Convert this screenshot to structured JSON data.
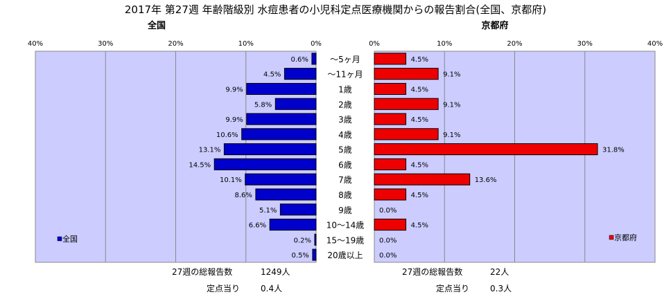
{
  "chart_data": {
    "type": "bar",
    "title": "2017年 第27週 年齢階級別 水痘患者の小児科定点医療機関からの報告割合(全国、京都府)",
    "categories": [
      "～5ヶ月",
      "～11ヶ月",
      "1歳",
      "2歳",
      "3歳",
      "4歳",
      "5歳",
      "6歳",
      "7歳",
      "8歳",
      "9歳",
      "10～14歳",
      "15～19歳",
      "20歳以上"
    ],
    "xlim": [
      0,
      40
    ],
    "ticks": [
      "40%",
      "30%",
      "20%",
      "10%",
      "0%"
    ],
    "ticks_right": [
      "0%",
      "10%",
      "20%",
      "30%",
      "40%"
    ],
    "grid": true,
    "series": [
      {
        "name": "全国",
        "panel": "left",
        "color": "#0000cc",
        "legend_position": "bottom-left",
        "values": [
          0.6,
          4.5,
          9.9,
          5.8,
          9.9,
          10.6,
          13.1,
          14.5,
          10.1,
          8.6,
          5.1,
          6.6,
          0.2,
          0.5
        ],
        "labels": [
          "0.6%",
          "4.5%",
          "9.9%",
          "5.8%",
          "9.9%",
          "10.6%",
          "13.1%",
          "14.5%",
          "10.1%",
          "8.6%",
          "5.1%",
          "6.6%",
          "0.2%",
          "0.5%"
        ]
      },
      {
        "name": "京都府",
        "panel": "right",
        "color": "#ee0000",
        "legend_position": "bottom-right",
        "values": [
          4.5,
          9.1,
          4.5,
          9.1,
          4.5,
          9.1,
          31.8,
          4.5,
          13.6,
          4.5,
          0.0,
          4.5,
          0.0,
          0.0
        ],
        "labels": [
          "4.5%",
          "9.1%",
          "4.5%",
          "9.1%",
          "4.5%",
          "9.1%",
          "31.8%",
          "4.5%",
          "13.6%",
          "4.5%",
          "0.0%",
          "4.5%",
          "0.0%",
          "0.0%"
        ]
      }
    ],
    "panel_background": "#ccccff"
  },
  "footer": {
    "left": {
      "total_label": "27週の総報告数",
      "total_value": "1249人",
      "per_label": "定点当り",
      "per_value": "0.4人"
    },
    "right": {
      "total_label": "27週の総報告数",
      "total_value": "22人",
      "per_label": "定点当り",
      "per_value": "0.3人"
    }
  }
}
